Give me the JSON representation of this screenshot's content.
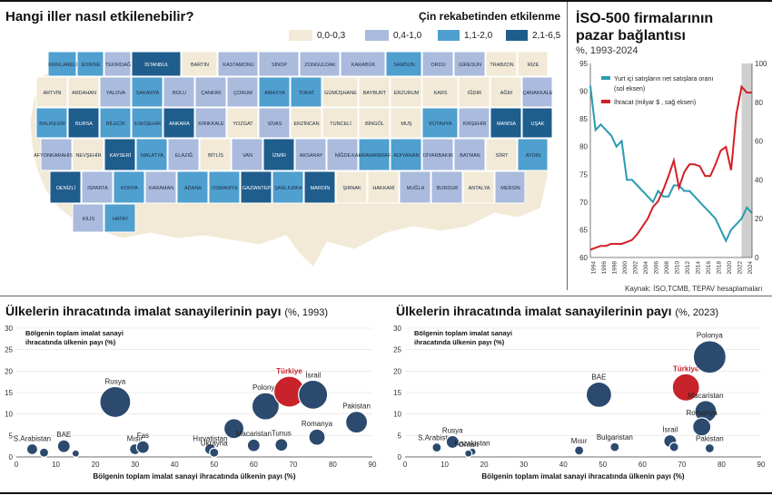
{
  "map": {
    "title": "Hangi iller nasıl etkilenebilir?",
    "legend_title": "Çin rekabetinden etkilenme",
    "legend": [
      {
        "label": "0,0-0,3",
        "color": "#f2ead6"
      },
      {
        "label": "0,4-1,0",
        "color": "#aabbdd"
      },
      {
        "label": "1,1-2,0",
        "color": "#4f9fcf"
      },
      {
        "label": "2,1-6,5",
        "color": "#1f5d8c"
      }
    ],
    "provinces": [
      {
        "name": "KIRKLARELİ",
        "level": 2
      },
      {
        "name": "EDİRNE",
        "level": 2
      },
      {
        "name": "TEKİRDAĞ",
        "level": 1
      },
      {
        "name": "İSTANBUL",
        "level": 3
      },
      {
        "name": "BARTIN",
        "level": 0
      },
      {
        "name": "KASTAMONU",
        "level": 1
      },
      {
        "name": "SİNOP",
        "level": 1
      },
      {
        "name": "ZONGULDAK",
        "level": 1
      },
      {
        "name": "KARABÜK",
        "level": 1
      },
      {
        "name": "SAMSUN",
        "level": 2
      },
      {
        "name": "ORDU",
        "level": 1
      },
      {
        "name": "GİRESUN",
        "level": 1
      },
      {
        "name": "TRABZON",
        "level": 0
      },
      {
        "name": "RİZE",
        "level": 0
      },
      {
        "name": "ARTVİN",
        "level": 0
      },
      {
        "name": "ARDAHAN",
        "level": 0
      },
      {
        "name": "YALOVA",
        "level": 1
      },
      {
        "name": "SAKARYA",
        "level": 2
      },
      {
        "name": "BOLU",
        "level": 1
      },
      {
        "name": "ÇANKIRI",
        "level": 1
      },
      {
        "name": "ÇORUM",
        "level": 1
      },
      {
        "name": "AMASYA",
        "level": 2
      },
      {
        "name": "TOKAT",
        "level": 2
      },
      {
        "name": "GÜMÜŞHANE",
        "level": 0
      },
      {
        "name": "BAYBURT",
        "level": 0
      },
      {
        "name": "ERZURUM",
        "level": 0
      },
      {
        "name": "KARS",
        "level": 0
      },
      {
        "name": "IĞDIR",
        "level": 0
      },
      {
        "name": "AĞRI",
        "level": 0
      },
      {
        "name": "ÇANAKKALE",
        "level": 1
      },
      {
        "name": "BALIKESİR",
        "level": 2
      },
      {
        "name": "BURSA",
        "level": 3
      },
      {
        "name": "BİLECİK",
        "level": 2
      },
      {
        "name": "ESKİŞEHİR",
        "level": 2
      },
      {
        "name": "ANKARA",
        "level": 3
      },
      {
        "name": "KIRIKKALE",
        "level": 1
      },
      {
        "name": "YOZGAT",
        "level": 0
      },
      {
        "name": "SİVAS",
        "level": 1
      },
      {
        "name": "ERZİNCAN",
        "level": 0
      },
      {
        "name": "TUNCELİ",
        "level": 0
      },
      {
        "name": "BİNGÖL",
        "level": 0
      },
      {
        "name": "MUŞ",
        "level": 0
      },
      {
        "name": "KÜTAHYA",
        "level": 2
      },
      {
        "name": "KIRŞEHİR",
        "level": 1
      },
      {
        "name": "MANİSA",
        "level": 3
      },
      {
        "name": "UŞAK",
        "level": 3
      },
      {
        "name": "AFYONKARAHİSAR",
        "level": 1
      },
      {
        "name": "NEVŞEHİR",
        "level": 0
      },
      {
        "name": "KAYSERİ",
        "level": 3
      },
      {
        "name": "MALATYA",
        "level": 2
      },
      {
        "name": "ELAZIĞ",
        "level": 1
      },
      {
        "name": "BİTLİS",
        "level": 0
      },
      {
        "name": "VAN",
        "level": 1
      },
      {
        "name": "İZMİR",
        "level": 3
      },
      {
        "name": "AKSARAY",
        "level": 1
      },
      {
        "name": "NİĞDE",
        "level": 1
      },
      {
        "name": "KAHRAMANMARAŞ",
        "level": 2
      },
      {
        "name": "ADIYAMAN",
        "level": 2
      },
      {
        "name": "DİYARBAKIR",
        "level": 1
      },
      {
        "name": "BATMAN",
        "level": 1
      },
      {
        "name": "SİİRT",
        "level": 0
      },
      {
        "name": "AYDIN",
        "level": 2
      },
      {
        "name": "DENİZLİ",
        "level": 3
      },
      {
        "name": "ISPARTA",
        "level": 1
      },
      {
        "name": "KONYA",
        "level": 2
      },
      {
        "name": "KARAMAN",
        "level": 1
      },
      {
        "name": "ADANA",
        "level": 2
      },
      {
        "name": "OSMANİYE",
        "level": 2
      },
      {
        "name": "GAZİANTEP",
        "level": 3
      },
      {
        "name": "ŞANLIURFA",
        "level": 2
      },
      {
        "name": "MARDİN",
        "level": 3
      },
      {
        "name": "ŞIRNAK",
        "level": 0
      },
      {
        "name": "HAKKARİ",
        "level": 0
      },
      {
        "name": "MUĞLA",
        "level": 1
      },
      {
        "name": "BURDUR",
        "level": 1
      },
      {
        "name": "ANTALYA",
        "level": 0
      },
      {
        "name": "MERSİN",
        "level": 1
      },
      {
        "name": "KİLİS",
        "level": 1
      },
      {
        "name": "HATAY",
        "level": 2
      }
    ]
  },
  "iso": {
    "title_line1": "İSO-500 firmalarının",
    "title_line2": "pazar bağlantısı",
    "subtitle": "%, 1993-2024",
    "source": "Kaynak: İSO,TCMB, TEPAV hesaplamaları",
    "left_legend": "Yurt içi satışların net satışlara oranı (sol eksen)",
    "right_legend": "İhracat (milyar $ , sağ eksen)",
    "left_color": "#2a9bb0",
    "right_color": "#d21f26"
  },
  "bubble1": {
    "title": "Ülkelerin ihracatında imalat sanayilerinin payı",
    "title_suffix": "(%, 1993)",
    "ylabel": "Bölgenin toplam imalat sanayi ihracatında ülkenin payı (%)",
    "xlabel": "Bölgenin toplam imalat sanayi ihracatında ülkenin payı (%)"
  },
  "bubble2": {
    "title": "Ülkelerin ihracatında imalat sanayilerinin payı",
    "title_suffix": "(%, 2023)",
    "ylabel": "Bölgenin toplam imalat sanayi ihracatında ülkenin payı (%)",
    "xlabel": "Bölgenin toplam imalat sanayi ihracatında ülkenin payı (%)"
  },
  "chart_data": [
    {
      "type": "line",
      "title": "İSO-500 firmalarının pazar bağlantısı",
      "subtitle": "%, 1993-2024",
      "x_ticks": [
        "1994",
        "1996",
        "1998",
        "2000",
        "2002",
        "2004",
        "2006",
        "2008",
        "2010",
        "2012",
        "2014",
        "2016",
        "2018",
        "2020",
        "2022",
        "2024"
      ],
      "x": [
        1993,
        1994,
        1995,
        1996,
        1997,
        1998,
        1999,
        2000,
        2001,
        2002,
        2003,
        2004,
        2005,
        2006,
        2007,
        2008,
        2009,
        2010,
        2011,
        2012,
        2013,
        2014,
        2015,
        2016,
        2017,
        2018,
        2019,
        2020,
        2021,
        2022,
        2023,
        2024
      ],
      "ylim_left": [
        60,
        95
      ],
      "ylim_right": [
        0,
        100
      ],
      "yticks_left": [
        60,
        65,
        70,
        75,
        80,
        85,
        90,
        95
      ],
      "yticks_right": [
        0,
        20,
        40,
        60,
        80,
        100
      ],
      "series": [
        {
          "name": "Yurt içi satışların net satışlara oranı (sol eksen)",
          "axis": "left",
          "values": [
            91,
            83,
            84,
            83,
            82,
            80,
            81,
            74,
            74,
            73,
            72,
            71,
            70,
            72,
            71,
            71,
            73,
            73,
            72,
            72,
            71,
            70,
            69,
            68,
            67,
            65,
            63,
            65,
            66,
            67,
            69,
            68
          ]
        },
        {
          "name": "İhracat (milyar $ , sağ eksen)",
          "axis": "right",
          "values": [
            4,
            5,
            6,
            6,
            7,
            7,
            7,
            8,
            9,
            12,
            16,
            20,
            26,
            29,
            35,
            42,
            50,
            36,
            44,
            48,
            48,
            47,
            42,
            42,
            48,
            55,
            57,
            45,
            74,
            88,
            85,
            85
          ]
        }
      ],
      "shaded_x": [
        2022,
        2024
      ]
    },
    {
      "type": "scatter",
      "title": "Ülkelerin ihracatında imalat sanayilerinin payı",
      "subtitle": "%, 1993",
      "xlim": [
        0,
        90
      ],
      "ylim": [
        0,
        30
      ],
      "xticks": [
        0,
        10,
        20,
        30,
        40,
        50,
        60,
        70,
        80,
        90
      ],
      "yticks": [
        0,
        5,
        10,
        15,
        20,
        25,
        30
      ],
      "points": [
        {
          "label": "S.Arabistan",
          "x": 4,
          "y": 1.8,
          "size": 6
        },
        {
          "label": "",
          "x": 7,
          "y": 1.0,
          "size": 5
        },
        {
          "label": "BAE",
          "x": 12,
          "y": 2.5,
          "size": 7
        },
        {
          "label": "",
          "x": 15,
          "y": 0.8,
          "size": 4
        },
        {
          "label": "Rusya",
          "x": 25,
          "y": 12.8,
          "size": 17
        },
        {
          "label": "Mısır",
          "x": 30,
          "y": 1.8,
          "size": 6
        },
        {
          "label": "Fas",
          "x": 32,
          "y": 2.3,
          "size": 7
        },
        {
          "label": "Hırvatistan",
          "x": 49,
          "y": 1.8,
          "size": 6
        },
        {
          "label": "Ukrayna",
          "x": 50,
          "y": 1.0,
          "size": 5
        },
        {
          "label": "",
          "x": 55,
          "y": 6.6,
          "size": 11
        },
        {
          "label": "Macaristan",
          "x": 60,
          "y": 2.7,
          "size": 7
        },
        {
          "label": "Polonya",
          "x": 63,
          "y": 11.8,
          "size": 15
        },
        {
          "label": "Türkiye",
          "x": 69,
          "y": 15.2,
          "size": 17,
          "highlight": true
        },
        {
          "label": "İsrail",
          "x": 75,
          "y": 14.5,
          "size": 16
        },
        {
          "label": "Tunus",
          "x": 67,
          "y": 2.8,
          "size": 7
        },
        {
          "label": "Romanya",
          "x": 76,
          "y": 4.6,
          "size": 9
        },
        {
          "label": "Pakistan",
          "x": 86,
          "y": 8.1,
          "size": 12
        }
      ]
    },
    {
      "type": "scatter",
      "title": "Ülkelerin ihracatında imalat sanayilerinin payı",
      "subtitle": "%, 2023",
      "xlim": [
        0,
        90
      ],
      "ylim": [
        0,
        30
      ],
      "xticks": [
        0,
        10,
        20,
        30,
        40,
        50,
        60,
        70,
        80,
        90
      ],
      "yticks": [
        0,
        5,
        10,
        15,
        20,
        25,
        30
      ],
      "points": [
        {
          "label": "S.Arabistan",
          "x": 8,
          "y": 2.2,
          "size": 5
        },
        {
          "label": "Rusya",
          "x": 12,
          "y": 3.5,
          "size": 7
        },
        {
          "label": "Kazakistan",
          "x": 17,
          "y": 1.2,
          "size": 4
        },
        {
          "label": "Oman",
          "x": 16,
          "y": 0.8,
          "size": 4
        },
        {
          "label": "Mısır",
          "x": 44,
          "y": 1.5,
          "size": 5
        },
        {
          "label": "BAE",
          "x": 49,
          "y": 14.5,
          "size": 14
        },
        {
          "label": "Bulgaristan",
          "x": 53,
          "y": 2.3,
          "size": 5
        },
        {
          "label": "İsrail",
          "x": 67,
          "y": 3.7,
          "size": 7
        },
        {
          "label": "",
          "x": 68,
          "y": 2.3,
          "size": 5
        },
        {
          "label": "Türkiye",
          "x": 71,
          "y": 16.2,
          "size": 15,
          "highlight": true
        },
        {
          "label": "Polonya",
          "x": 77,
          "y": 23.3,
          "size": 18
        },
        {
          "label": "Macaristan",
          "x": 76,
          "y": 10.6,
          "size": 12
        },
        {
          "label": "Romanya",
          "x": 75,
          "y": 7.0,
          "size": 10
        },
        {
          "label": "Pakistan",
          "x": 77,
          "y": 2.0,
          "size": 5
        }
      ]
    }
  ]
}
